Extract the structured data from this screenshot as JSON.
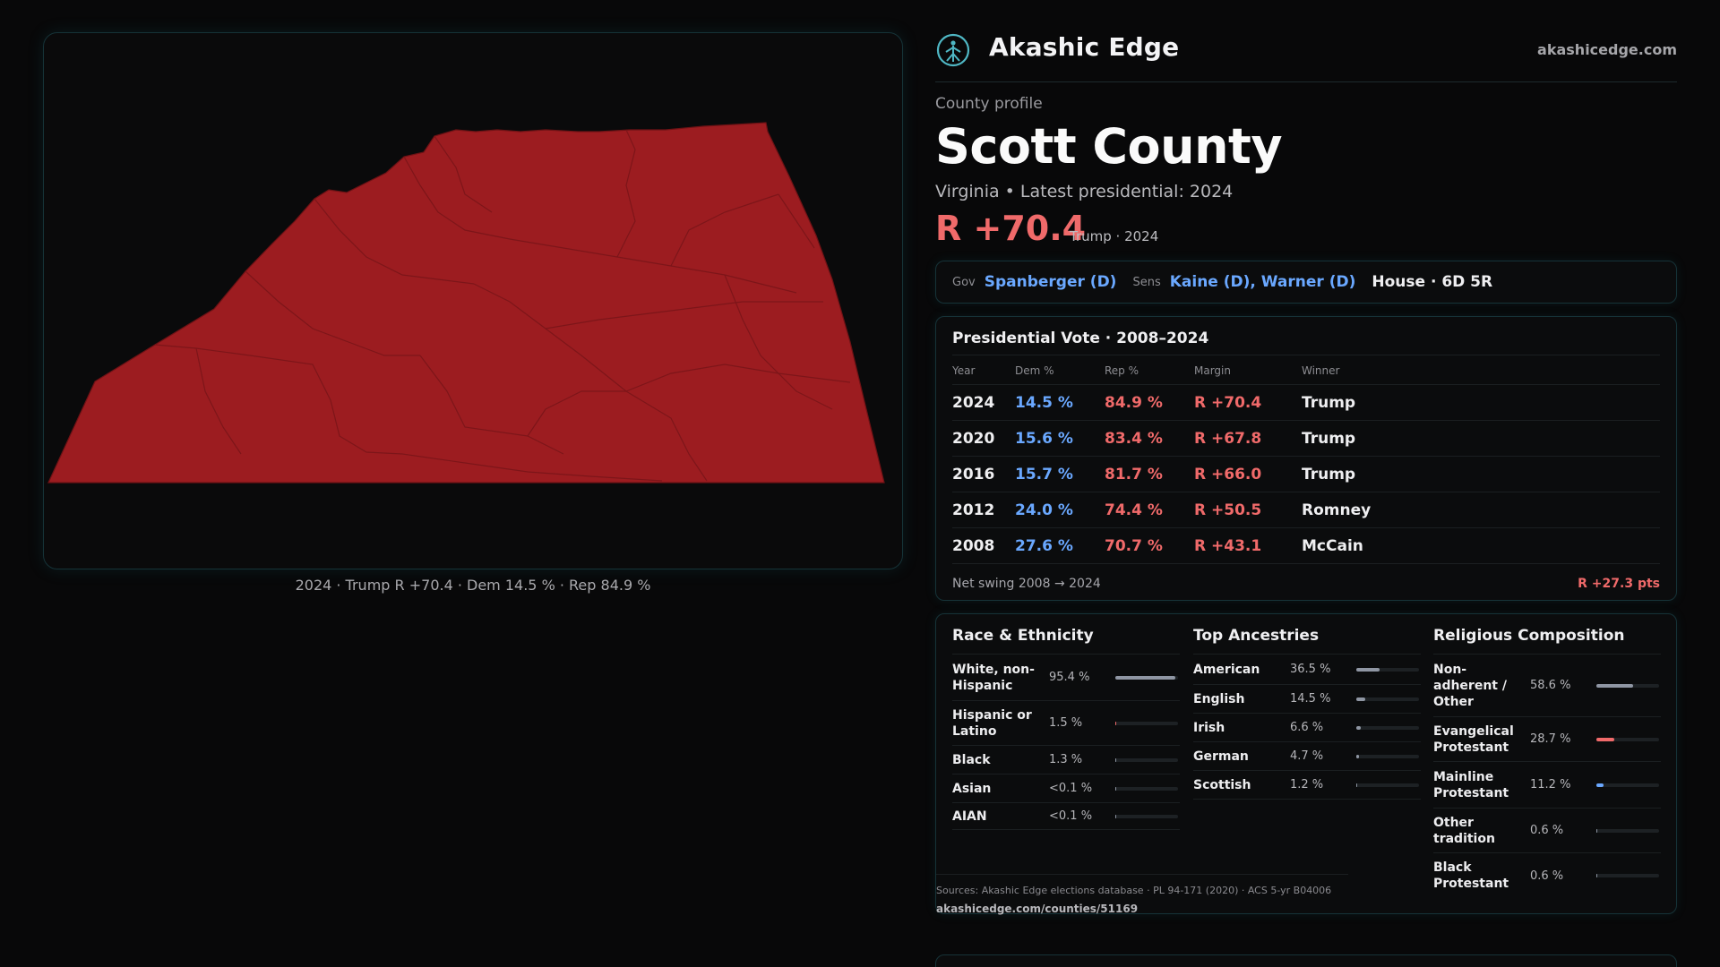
{
  "map": {
    "caption": "2024 · Trump R +70.4 · Dem 14.5 % · Rep 84.9 %",
    "fill_color": "#9c1c20",
    "border_color": "#7b1418"
  },
  "brand": {
    "name": "Akashic Edge",
    "url": "akashicedge.com",
    "logo_icon": "akashic-edge-logo-icon"
  },
  "county": {
    "kicker": "County profile",
    "title": "Scott County",
    "subline": "Virginia • Latest presidential: 2024",
    "margin": "R +70.4",
    "margin_note": "Trump · 2024"
  },
  "officials": {
    "gov_label": "Gov",
    "gov_value": "Spanberger (D)",
    "sens_label": "Sens",
    "sens_value": "Kaine (D), Warner (D)",
    "house": "House · 6D 5R"
  },
  "presidential": {
    "title": "Presidential Vote · 2008–2024",
    "headers": [
      "Year",
      "Dem %",
      "Rep %",
      "Margin",
      "Winner"
    ],
    "rows": [
      {
        "year": "2024",
        "dem": "14.5 %",
        "rep": "84.9 %",
        "margin": "R +70.4",
        "winner": "Trump"
      },
      {
        "year": "2020",
        "dem": "15.6 %",
        "rep": "83.4 %",
        "margin": "R +67.8",
        "winner": "Trump"
      },
      {
        "year": "2016",
        "dem": "15.7 %",
        "rep": "81.7 %",
        "margin": "R +66.0",
        "winner": "Trump"
      },
      {
        "year": "2012",
        "dem": "24.0 %",
        "rep": "74.4 %",
        "margin": "R +50.5",
        "winner": "Romney"
      },
      {
        "year": "2008",
        "dem": "27.6 %",
        "rep": "70.7 %",
        "margin": "R +43.1",
        "winner": "McCain"
      }
    ],
    "swing_label": "Net swing 2008 → 2024",
    "swing_value": "R +27.3 pts"
  },
  "race": {
    "title": "Race & Ethnicity",
    "items": [
      {
        "label": "White, non-Hispanic",
        "value": "95.4 %",
        "share": 0.954
      },
      {
        "label": "Hispanic or Latino",
        "value": "1.5 %",
        "share": 0.015
      },
      {
        "label": "Black",
        "value": "1.3 %",
        "share": 0.013
      },
      {
        "label": "Asian",
        "value": "<0.1 %",
        "share": 0.0
      },
      {
        "label": "AIAN",
        "value": "<0.1 %",
        "share": 0.0
      }
    ]
  },
  "ancestry": {
    "title": "Top Ancestries",
    "items": [
      {
        "label": "American",
        "value": "36.5 %",
        "share": 0.365
      },
      {
        "label": "English",
        "value": "14.5 %",
        "share": 0.145
      },
      {
        "label": "Irish",
        "value": "6.6 %",
        "share": 0.066
      },
      {
        "label": "German",
        "value": "4.7 %",
        "share": 0.047
      },
      {
        "label": "Scottish",
        "value": "1.2 %",
        "share": 0.012
      }
    ]
  },
  "religion": {
    "title": "Religious Composition",
    "items": [
      {
        "label": "Non-adherent / Other",
        "value": "58.6 %",
        "share": 0.586,
        "color": "#8f96a3"
      },
      {
        "label": "Evangelical Protestant",
        "value": "28.7 %",
        "share": 0.287,
        "color": "#f06a6a"
      },
      {
        "label": "Mainline Protestant",
        "value": "11.2 %",
        "share": 0.112,
        "color": "#6aa8ff"
      },
      {
        "label": "Other tradition",
        "value": "0.6 %",
        "share": 0.006,
        "color": "#8f96a3"
      },
      {
        "label": "Black Protestant",
        "value": "0.6 %",
        "share": 0.006,
        "color": "#8f96a3"
      }
    ]
  },
  "sources": {
    "text": "Sources: Akashic Edge elections database · PL 94-171 (2020) · ACS 5-yr B04006",
    "url": "akashicedge.com/counties/51169"
  },
  "colors": {
    "dem": "#6aa8ff",
    "rep": "#f06a6a",
    "bar_neutral": "#8f96a3",
    "accent_border": "#163338"
  }
}
